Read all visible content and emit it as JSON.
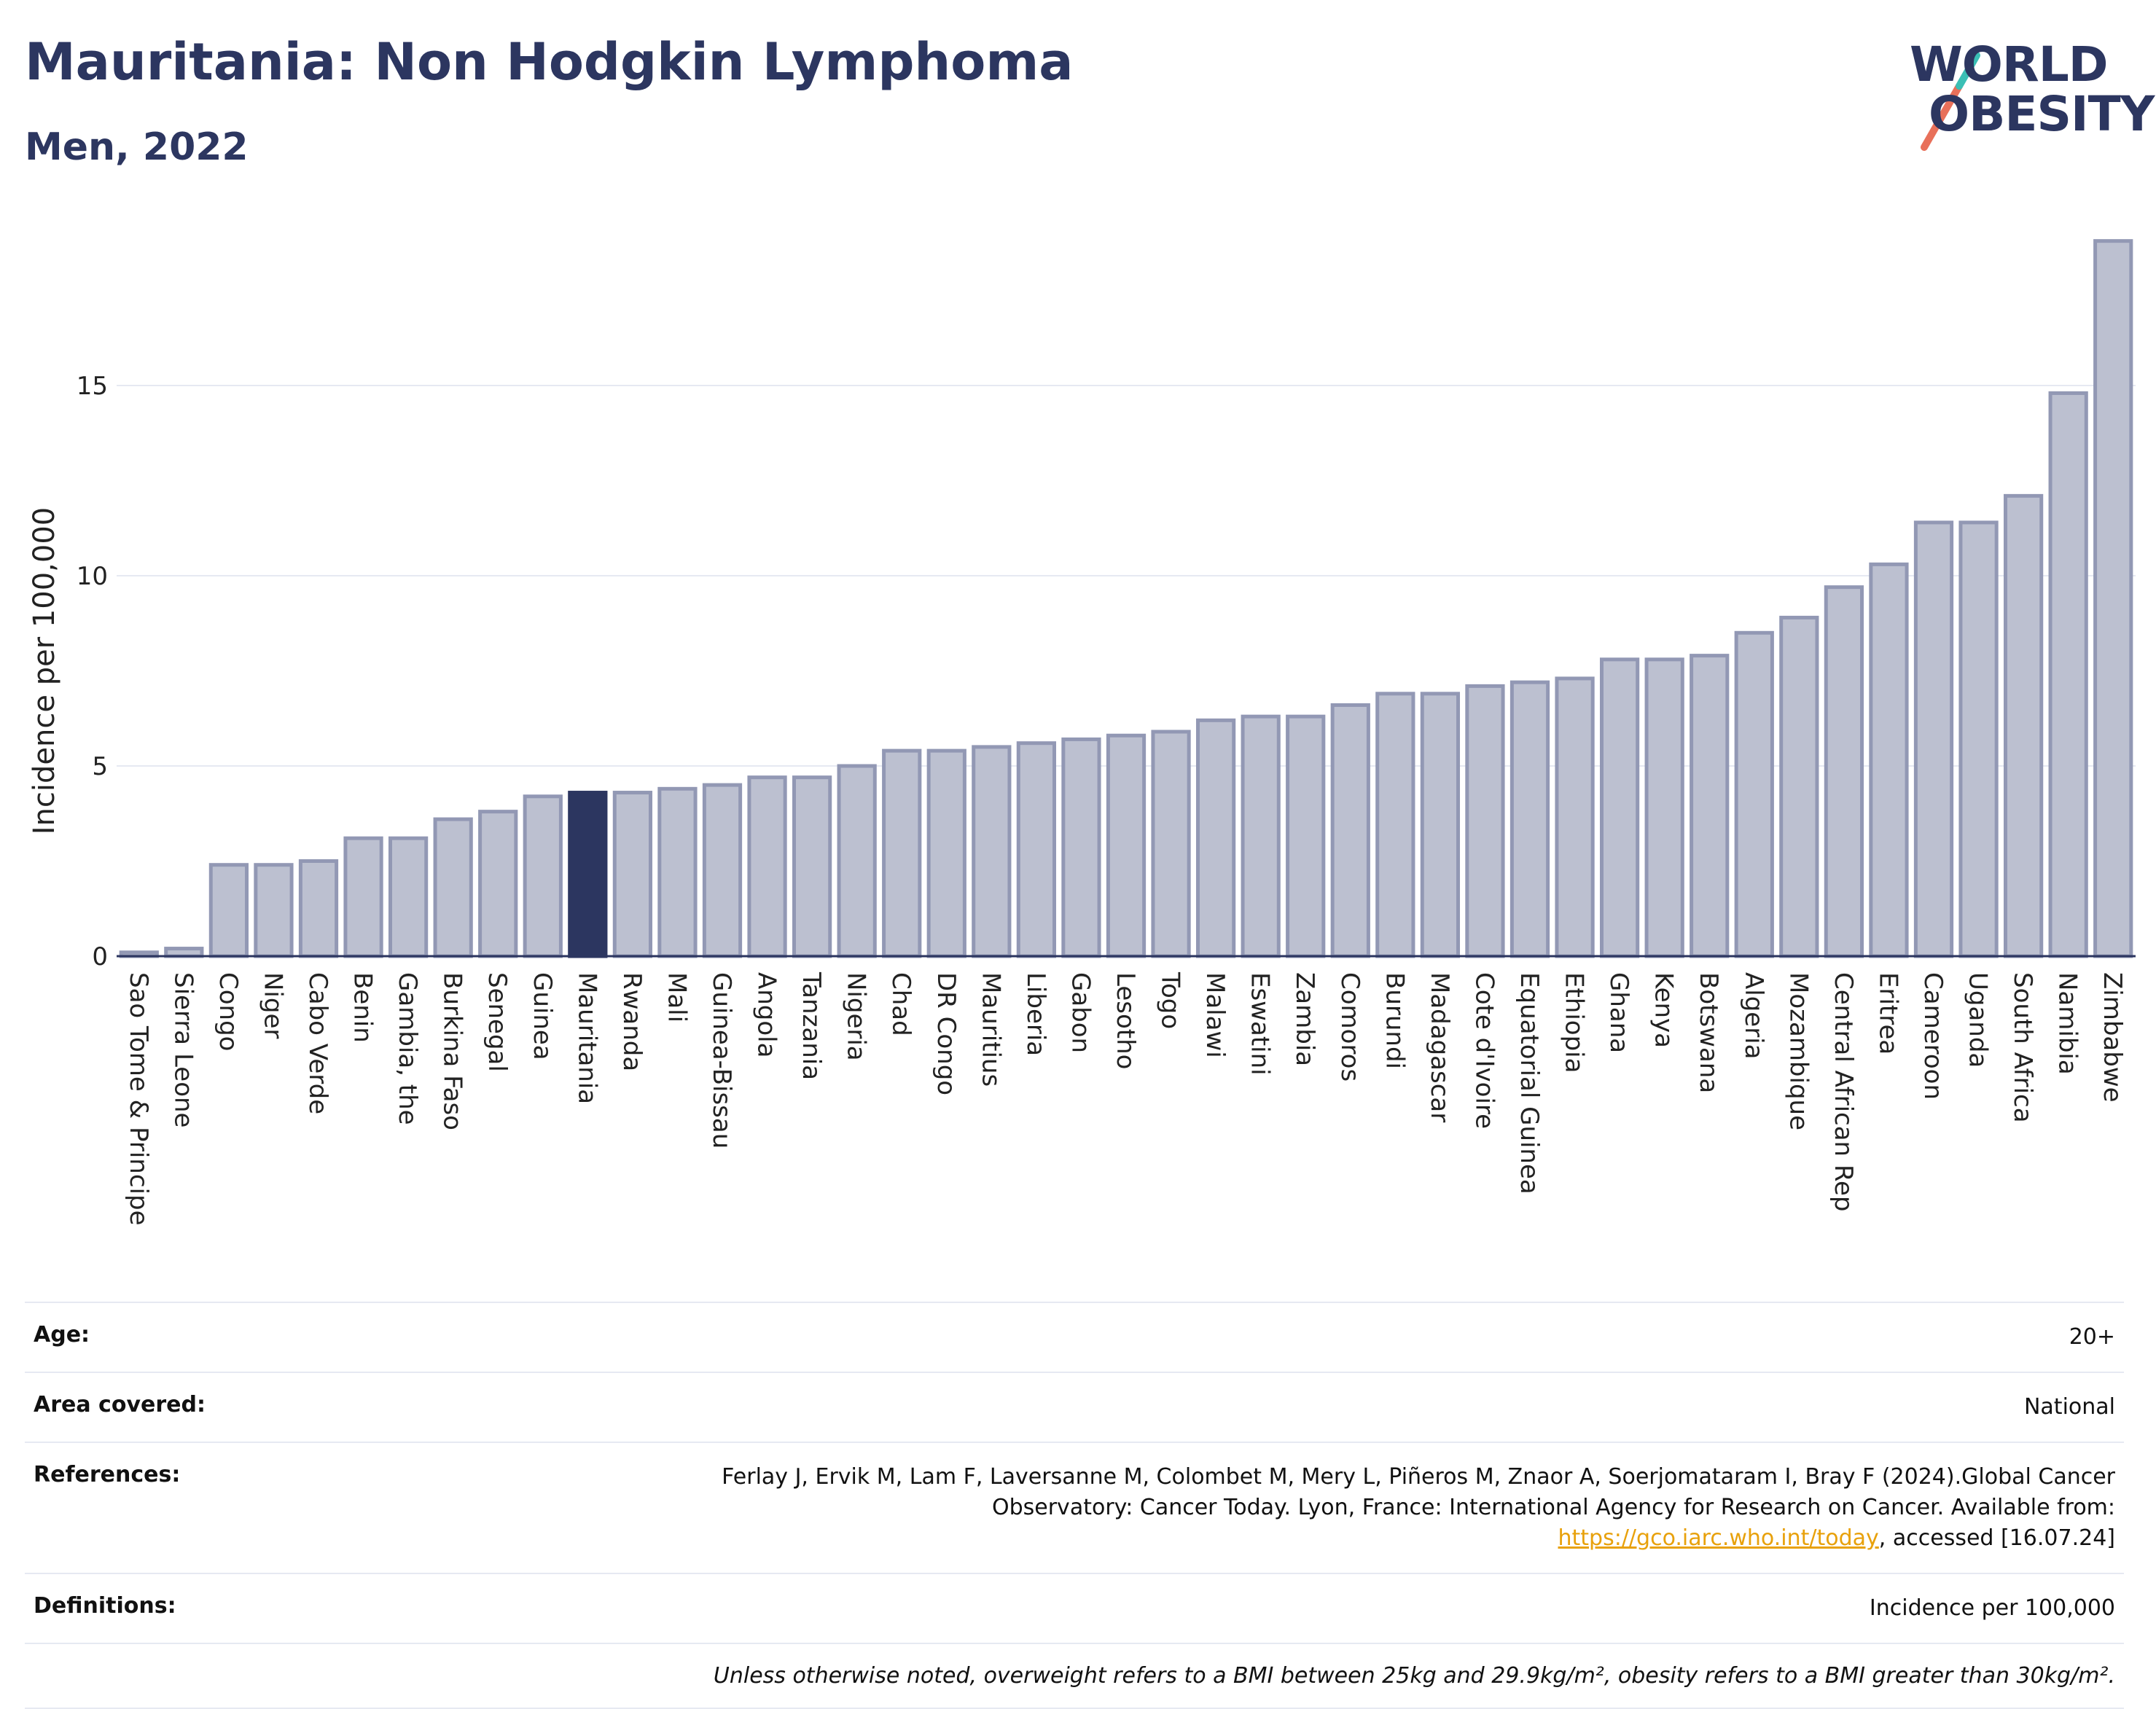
{
  "header": {
    "title": "Mauritania: Non Hodgkin Lymphoma",
    "subtitle": "Men, 2022"
  },
  "logo": {
    "line1": "WORLD",
    "line2": "OBESITY",
    "accent_colors": [
      "#e8705a",
      "#3bbfb5"
    ]
  },
  "chart_data": {
    "type": "bar",
    "ylabel": "Incidence per 100,000",
    "ylim": [
      0,
      19
    ],
    "yticks": [
      0,
      5,
      10,
      15
    ],
    "grid": true,
    "highlight": "Mauritania",
    "colors": {
      "bar": "#bcc0d0",
      "bar_stroke": "#9298b4",
      "highlight": "#2c3660"
    },
    "categories": [
      "Sao Tome & Principe",
      "Sierra Leone",
      "Congo",
      "Niger",
      "Cabo Verde",
      "Benin",
      "Gambia, the",
      "Burkina Faso",
      "Senegal",
      "Guinea",
      "Mauritania",
      "Rwanda",
      "Mali",
      "Guinea-Bissau",
      "Angola",
      "Tanzania",
      "Nigeria",
      "Chad",
      "DR Congo",
      "Mauritius",
      "Liberia",
      "Gabon",
      "Lesotho",
      "Togo",
      "Malawi",
      "Eswatini",
      "Zambia",
      "Comoros",
      "Burundi",
      "Madagascar",
      "Cote d'Ivoire",
      "Equatorial Guinea",
      "Ethiopia",
      "Ghana",
      "Kenya",
      "Botswana",
      "Algeria",
      "Mozambique",
      "Central African Rep",
      "Eritrea",
      "Cameroon",
      "Uganda",
      "South Africa",
      "Namibia",
      "Zimbabwe"
    ],
    "values": [
      0.1,
      0.2,
      2.4,
      2.4,
      2.5,
      3.1,
      3.1,
      3.6,
      3.8,
      4.2,
      4.3,
      4.3,
      4.4,
      4.5,
      4.7,
      4.7,
      5.0,
      5.4,
      5.4,
      5.5,
      5.6,
      5.7,
      5.8,
      5.9,
      6.2,
      6.3,
      6.3,
      6.6,
      6.9,
      6.9,
      7.1,
      7.2,
      7.3,
      7.8,
      7.8,
      7.9,
      8.5,
      8.9,
      9.7,
      10.3,
      11.4,
      11.4,
      12.1,
      14.8,
      18.8
    ]
  },
  "info": {
    "age_label": "Age:",
    "age_value": "20+",
    "area_label": "Area covered:",
    "area_value": "National",
    "references_label": "References:",
    "references_text": "Ferlay J, Ervik M, Lam F, Laversanne M, Colombet M, Mery L, Piñeros M, Znaor A, Soerjomataram I, Bray F (2024).Global Cancer Observatory: Cancer Today. Lyon, France: International Agency for Research on Cancer. Available from: ",
    "references_link": "https://gco.iarc.who.int/today",
    "references_tail": ", accessed [16.07.24]",
    "definitions_label": "Definitions:",
    "definitions_value": "Incidence per 100,000",
    "note": "Unless otherwise noted, overweight refers to a BMI between 25kg and 29.9kg/m², obesity refers to a BMI greater than 30kg/m²."
  }
}
